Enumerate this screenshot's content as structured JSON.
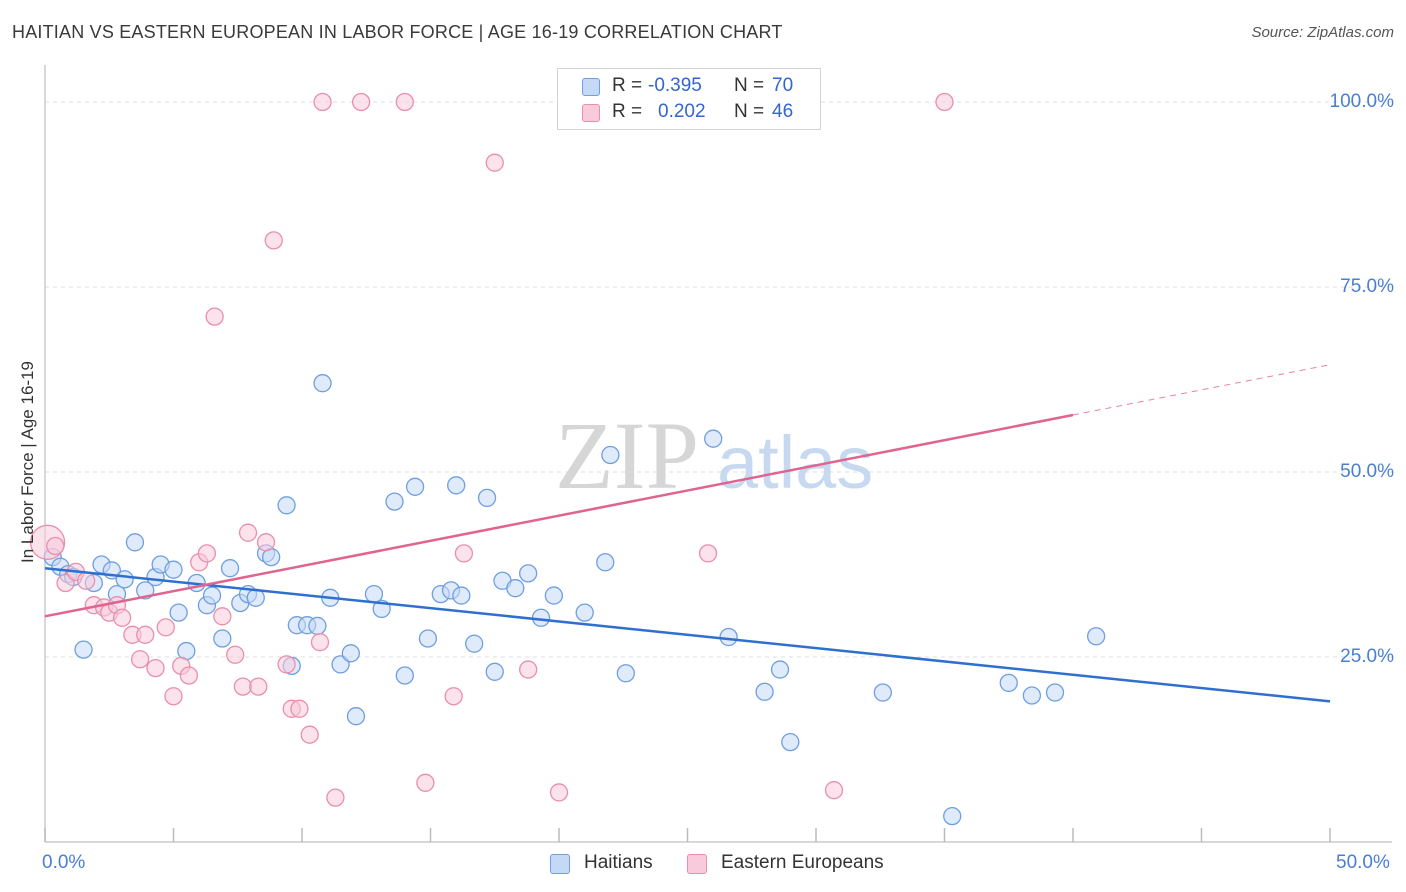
{
  "chart_data": {
    "type": "scatter",
    "title": "HAITIAN VS EASTERN EUROPEAN IN LABOR FORCE | AGE 16-19 CORRELATION CHART",
    "source": "Source: ZipAtlas.com",
    "xlabel": "",
    "ylabel": "In Labor Force | Age 16-19",
    "xlim": [
      0,
      50
    ],
    "ylim": [
      0,
      105
    ],
    "x_tick_labels": [
      "0.0%",
      "50.0%"
    ],
    "y_ticks": [
      {
        "value": 25,
        "label": "25.0%"
      },
      {
        "value": 50,
        "label": "50.0%"
      },
      {
        "value": 75,
        "label": "75.0%"
      },
      {
        "value": 100,
        "label": "100.0%"
      }
    ],
    "grid": true,
    "watermark": {
      "zip": "ZIP",
      "atlas": "atlas"
    },
    "legend_stats": [
      {
        "r_label": "R =",
        "r_value": "-0.395",
        "n_label": "N =",
        "n_value": "70"
      },
      {
        "r_label": "R =",
        "r_value": "0.202",
        "n_label": "N =",
        "n_value": "46"
      }
    ],
    "series": [
      {
        "name": "Haitians",
        "color": "#6f9fe0",
        "fill": "#c5d8f5",
        "line_color": "#2f6fd0",
        "trend": {
          "x0": 0,
          "y0": 37.0,
          "x1": 50,
          "y1": 19.0,
          "dash_from": null
        },
        "points": [
          [
            0.3,
            38.5
          ],
          [
            0.6,
            37.2
          ],
          [
            0.9,
            36.2
          ],
          [
            1.1,
            35.8
          ],
          [
            1.5,
            26.0
          ],
          [
            1.9,
            35.0
          ],
          [
            2.2,
            37.5
          ],
          [
            2.6,
            36.7
          ],
          [
            2.8,
            33.5
          ],
          [
            3.1,
            35.5
          ],
          [
            3.5,
            40.5
          ],
          [
            3.9,
            34.0
          ],
          [
            4.3,
            35.8
          ],
          [
            4.5,
            37.5
          ],
          [
            5.0,
            36.8
          ],
          [
            5.2,
            31.0
          ],
          [
            5.5,
            25.8
          ],
          [
            5.9,
            35.0
          ],
          [
            6.3,
            32.0
          ],
          [
            6.5,
            33.3
          ],
          [
            6.9,
            27.5
          ],
          [
            7.2,
            37.0
          ],
          [
            7.6,
            32.3
          ],
          [
            7.9,
            33.5
          ],
          [
            8.2,
            33.0
          ],
          [
            8.6,
            39.0
          ],
          [
            8.8,
            38.5
          ],
          [
            9.4,
            45.5
          ],
          [
            9.6,
            23.8
          ],
          [
            9.8,
            29.3
          ],
          [
            10.2,
            29.3
          ],
          [
            10.6,
            29.2
          ],
          [
            10.8,
            62.0
          ],
          [
            11.1,
            33.0
          ],
          [
            11.5,
            24.0
          ],
          [
            11.9,
            25.5
          ],
          [
            12.1,
            17.0
          ],
          [
            12.8,
            33.5
          ],
          [
            13.1,
            31.5
          ],
          [
            13.6,
            46.0
          ],
          [
            14.0,
            22.5
          ],
          [
            14.4,
            48.0
          ],
          [
            14.9,
            27.5
          ],
          [
            15.4,
            33.5
          ],
          [
            15.8,
            34.0
          ],
          [
            16.0,
            48.2
          ],
          [
            16.2,
            33.3
          ],
          [
            16.7,
            26.8
          ],
          [
            17.2,
            46.5
          ],
          [
            17.5,
            23.0
          ],
          [
            17.8,
            35.3
          ],
          [
            18.3,
            34.3
          ],
          [
            18.8,
            36.3
          ],
          [
            19.3,
            30.3
          ],
          [
            19.8,
            33.3
          ],
          [
            21.0,
            31.0
          ],
          [
            21.8,
            37.8
          ],
          [
            22.0,
            52.3
          ],
          [
            22.6,
            22.8
          ],
          [
            26.0,
            54.5
          ],
          [
            26.6,
            27.7
          ],
          [
            28.0,
            20.3
          ],
          [
            28.6,
            23.3
          ],
          [
            29.0,
            13.5
          ],
          [
            32.6,
            20.2
          ],
          [
            35.3,
            3.5
          ],
          [
            37.5,
            21.5
          ],
          [
            38.4,
            19.8
          ],
          [
            39.3,
            20.2
          ],
          [
            40.9,
            27.8
          ]
        ]
      },
      {
        "name": "Eastern Europeans",
        "color": "#e98fab",
        "fill": "#f8cadb",
        "line_color": "#e0648f",
        "trend": {
          "x0": 0,
          "y0": 30.5,
          "x1": 50,
          "y1": 64.5,
          "dash_from": 40.0
        },
        "points": [
          [
            0.1,
            40.5
          ],
          [
            0.4,
            40.0
          ],
          [
            0.8,
            35.0
          ],
          [
            1.2,
            36.5
          ],
          [
            1.6,
            35.3
          ],
          [
            1.9,
            32.0
          ],
          [
            2.3,
            31.7
          ],
          [
            2.5,
            31.0
          ],
          [
            2.8,
            32.0
          ],
          [
            3.0,
            30.3
          ],
          [
            3.4,
            28.0
          ],
          [
            3.7,
            24.7
          ],
          [
            3.9,
            28.0
          ],
          [
            4.3,
            23.5
          ],
          [
            4.7,
            29.0
          ],
          [
            5.0,
            19.7
          ],
          [
            5.3,
            23.8
          ],
          [
            5.6,
            22.5
          ],
          [
            6.0,
            37.8
          ],
          [
            6.3,
            39.0
          ],
          [
            6.6,
            71.0
          ],
          [
            6.9,
            30.5
          ],
          [
            7.4,
            25.3
          ],
          [
            7.7,
            21.0
          ],
          [
            7.9,
            41.8
          ],
          [
            8.3,
            21.0
          ],
          [
            8.6,
            40.5
          ],
          [
            8.9,
            81.3
          ],
          [
            9.4,
            24.0
          ],
          [
            9.6,
            18.0
          ],
          [
            9.9,
            18.0
          ],
          [
            10.3,
            14.5
          ],
          [
            10.7,
            27.0
          ],
          [
            10.8,
            100.0
          ],
          [
            11.3,
            6.0
          ],
          [
            12.3,
            100.0
          ],
          [
            14.0,
            100.0
          ],
          [
            14.8,
            8.0
          ],
          [
            15.9,
            19.7
          ],
          [
            16.3,
            39.0
          ],
          [
            17.5,
            91.8
          ],
          [
            18.8,
            23.3
          ],
          [
            20.0,
            6.7
          ],
          [
            25.8,
            39.0
          ],
          [
            30.7,
            7.0
          ],
          [
            35.0,
            100.0
          ]
        ]
      }
    ]
  }
}
